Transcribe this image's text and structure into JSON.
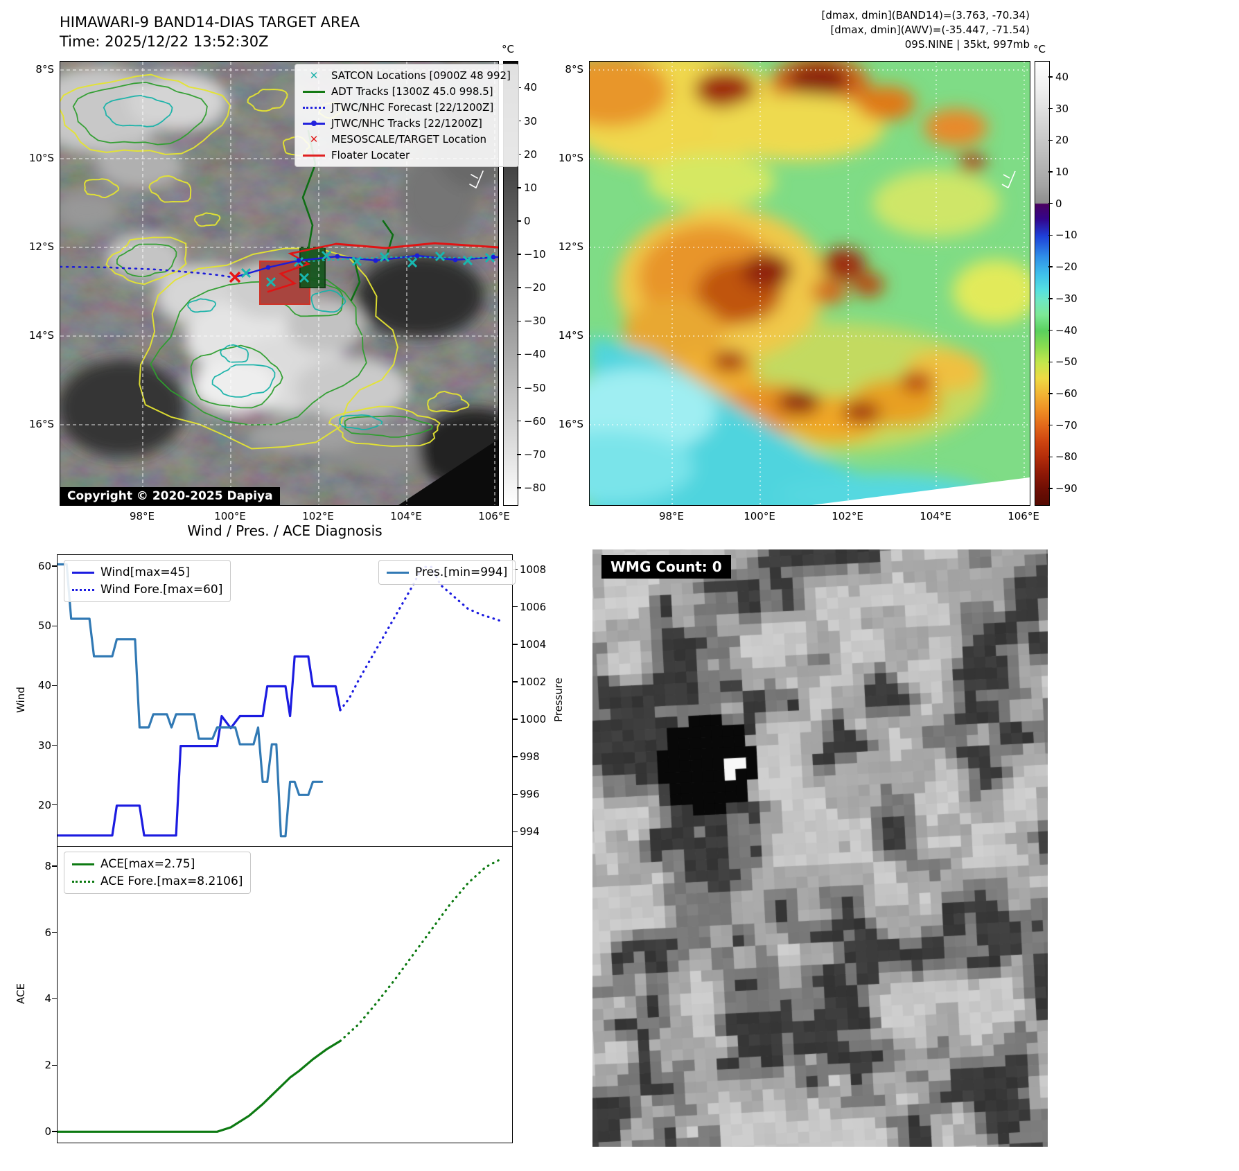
{
  "header": {
    "title": "HIMAWARI-9 BAND14-DIAS TARGET AREA",
    "time": "Time: 2025/12/22 13:52:30Z",
    "info_lines": [
      "[dmax, dmin](BAND14)=(3.763, -70.34)",
      "[dmax, dmin](AWV)=(-35.447, -71.54)",
      "09S.NINE | 35kt, 997mb"
    ]
  },
  "left_map": {
    "lat_ticks": [
      "8°S",
      "10°S",
      "12°S",
      "14°S",
      "16°S"
    ],
    "lon_ticks": [
      "98°E",
      "100°E",
      "102°E",
      "104°E",
      "106°E"
    ],
    "colorbar": {
      "unit": "°C",
      "ticks": [
        40,
        30,
        20,
        10,
        0,
        -10,
        -20,
        -30,
        -40,
        -50,
        -60,
        -70,
        -80
      ]
    },
    "legend": [
      {
        "label": "SATCON Locations [0900Z 48 992]"
      },
      {
        "label": "ADT Tracks [1300Z 45.0 998.5]"
      },
      {
        "label": "JTWC/NHC Forecast [22/1200Z]"
      },
      {
        "label": "JTWC/NHC Tracks [22/1200Z]"
      },
      {
        "label": "MESOSCALE/TARGET Location"
      },
      {
        "label": "Floater Locater"
      }
    ],
    "copyright": "Copyright © 2020-2025 Dapiya"
  },
  "right_map": {
    "lat_ticks": [
      "8°S",
      "10°S",
      "12°S",
      "14°S",
      "16°S"
    ],
    "lon_ticks": [
      "98°E",
      "100°E",
      "102°E",
      "104°E",
      "106°E"
    ],
    "colorbar": {
      "unit": "°C",
      "ticks": [
        40,
        30,
        20,
        10,
        0,
        -10,
        -20,
        -30,
        -40,
        -50,
        -60,
        -70,
        -80,
        -90
      ]
    }
  },
  "diagnosis": {
    "title": "Wind / Pres. / ACE Diagnosis",
    "wind_ylabel": "Wind",
    "pres_ylabel": "Pressure",
    "ace_ylabel": "ACE"
  },
  "wmg": {
    "label": "WMG Count: 0"
  },
  "chart_data": [
    {
      "type": "line",
      "title": "Wind / Pres. / ACE Diagnosis",
      "x_range": [
        0,
        100
      ],
      "grid": false,
      "ylabel_left": "Wind",
      "ylabel_right": "Pressure",
      "ylim_left": [
        13,
        62
      ],
      "ylim_right": [
        993.2,
        1008.8
      ],
      "yticks_left": [
        20,
        30,
        40,
        50,
        60
      ],
      "yticks_right": [
        994,
        996,
        998,
        1000,
        1002,
        1004,
        1006,
        1008
      ],
      "legend_left": [
        "Wind[max=45]",
        "Wind Fore.[max=60]"
      ],
      "legend_right": [
        "Pres.[min=994]"
      ],
      "series": [
        {
          "name": "Wind[max=45]",
          "axis": "left",
          "style": "solid",
          "color": "#1b1be0",
          "points": [
            [
              0,
              15
            ],
            [
              12,
              15
            ],
            [
              13,
              20
            ],
            [
              18,
              20
            ],
            [
              19,
              15
            ],
            [
              26,
              15
            ],
            [
              27,
              30
            ],
            [
              33,
              30
            ],
            [
              35,
              30
            ],
            [
              36,
              35
            ],
            [
              38,
              33
            ],
            [
              40,
              35
            ],
            [
              45,
              35
            ],
            [
              46,
              40
            ],
            [
              50,
              40
            ],
            [
              51,
              35
            ],
            [
              52,
              45
            ],
            [
              55,
              45
            ],
            [
              56,
              40
            ],
            [
              61,
              40
            ],
            [
              62,
              36
            ]
          ]
        },
        {
          "name": "Wind Fore.[max=60]",
          "axis": "left",
          "style": "dotted",
          "color": "#1b1be0",
          "points": [
            [
              62,
              36
            ],
            [
              64,
              38
            ],
            [
              66,
              41
            ],
            [
              69,
              45
            ],
            [
              72,
              49
            ],
            [
              75,
              53
            ],
            [
              78,
              57
            ],
            [
              80,
              60
            ],
            [
              82,
              60
            ],
            [
              84,
              57
            ],
            [
              87,
              55
            ],
            [
              90,
              53
            ],
            [
              93,
              52
            ],
            [
              97,
              51
            ]
          ]
        },
        {
          "name": "Pres.[min=994]",
          "axis": "right",
          "style": "solid",
          "color": "#3179b4",
          "points": [
            [
              0,
              1008.3
            ],
            [
              2,
              1008.3
            ],
            [
              3,
              1005.4
            ],
            [
              7,
              1005.4
            ],
            [
              8,
              1003.4
            ],
            [
              12,
              1003.4
            ],
            [
              13,
              1004.3
            ],
            [
              17,
              1004.3
            ],
            [
              18,
              999.6
            ],
            [
              20,
              999.6
            ],
            [
              21,
              1000.3
            ],
            [
              24,
              1000.3
            ],
            [
              25,
              999.6
            ],
            [
              26,
              1000.3
            ],
            [
              30,
              1000.3
            ],
            [
              31,
              999.0
            ],
            [
              34,
              999.0
            ],
            [
              35,
              999.6
            ],
            [
              39,
              999.6
            ],
            [
              40,
              998.7
            ],
            [
              43,
              998.7
            ],
            [
              44,
              999.6
            ],
            [
              45,
              996.7
            ],
            [
              46,
              996.7
            ],
            [
              47,
              998.7
            ],
            [
              48,
              998.7
            ],
            [
              49,
              993.8
            ],
            [
              50,
              993.8
            ],
            [
              51,
              996.7
            ],
            [
              52,
              996.7
            ],
            [
              53,
              996.0
            ],
            [
              55,
              996.0
            ],
            [
              56,
              996.7
            ],
            [
              58,
              996.7
            ]
          ]
        }
      ]
    },
    {
      "type": "line",
      "x_range": [
        0,
        100
      ],
      "grid": false,
      "ylabel": "ACE",
      "ylim": [
        -0.35,
        8.6
      ],
      "yticks": [
        0,
        2,
        4,
        6,
        8
      ],
      "legend": [
        "ACE[max=2.75]",
        "ACE Fore.[max=8.2106]"
      ],
      "series": [
        {
          "name": "ACE[max=2.75]",
          "style": "solid",
          "color": "#0d7a12",
          "points": [
            [
              0,
              0.02
            ],
            [
              35,
              0.02
            ],
            [
              38,
              0.15
            ],
            [
              42,
              0.5
            ],
            [
              45,
              0.85
            ],
            [
              48,
              1.25
            ],
            [
              51,
              1.65
            ],
            [
              53,
              1.85
            ],
            [
              56,
              2.2
            ],
            [
              59,
              2.5
            ],
            [
              62,
              2.75
            ]
          ]
        },
        {
          "name": "ACE Fore.[max=8.2106]",
          "style": "dotted",
          "color": "#0d7a12",
          "points": [
            [
              62,
              2.75
            ],
            [
              66,
              3.25
            ],
            [
              70,
              3.9
            ],
            [
              74,
              4.6
            ],
            [
              78,
              5.35
            ],
            [
              82,
              6.1
            ],
            [
              86,
              6.85
            ],
            [
              90,
              7.5
            ],
            [
              94,
              8.0
            ],
            [
              97,
              8.21
            ]
          ]
        }
      ]
    }
  ]
}
